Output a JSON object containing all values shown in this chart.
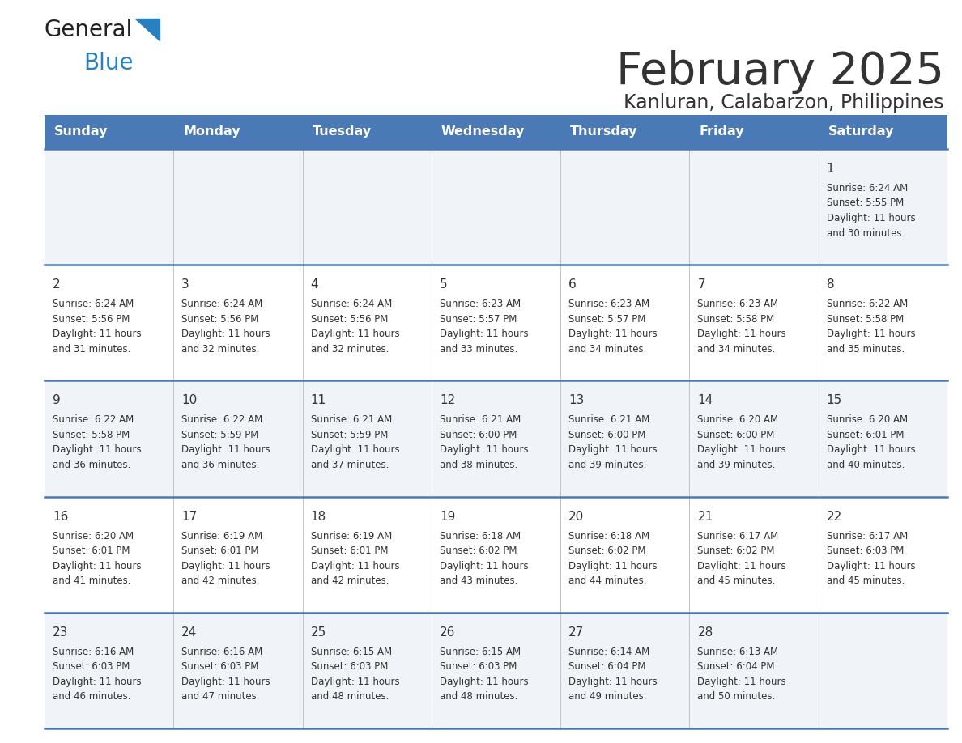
{
  "title": "February 2025",
  "subtitle": "Kanluran, Calabarzon, Philippines",
  "header_bg": "#4a7ab5",
  "header_text": "#ffffff",
  "header_days": [
    "Sunday",
    "Monday",
    "Tuesday",
    "Wednesday",
    "Thursday",
    "Friday",
    "Saturday"
  ],
  "row_bg_odd": "#f0f4f8",
  "row_bg_even": "#ffffff",
  "divider_color": "#4a7ab5",
  "text_color": "#333333",
  "logo_general_color": "#222222",
  "logo_blue_color": "#2980c0",
  "calendar": [
    [
      {
        "day": "",
        "sunrise": "",
        "sunset": "",
        "daylight": ""
      },
      {
        "day": "",
        "sunrise": "",
        "sunset": "",
        "daylight": ""
      },
      {
        "day": "",
        "sunrise": "",
        "sunset": "",
        "daylight": ""
      },
      {
        "day": "",
        "sunrise": "",
        "sunset": "",
        "daylight": ""
      },
      {
        "day": "",
        "sunrise": "",
        "sunset": "",
        "daylight": ""
      },
      {
        "day": "",
        "sunrise": "",
        "sunset": "",
        "daylight": ""
      },
      {
        "day": "1",
        "sunrise": "6:24 AM",
        "sunset": "5:55 PM",
        "daylight": "11 hours\nand 30 minutes."
      }
    ],
    [
      {
        "day": "2",
        "sunrise": "6:24 AM",
        "sunset": "5:56 PM",
        "daylight": "11 hours\nand 31 minutes."
      },
      {
        "day": "3",
        "sunrise": "6:24 AM",
        "sunset": "5:56 PM",
        "daylight": "11 hours\nand 32 minutes."
      },
      {
        "day": "4",
        "sunrise": "6:24 AM",
        "sunset": "5:56 PM",
        "daylight": "11 hours\nand 32 minutes."
      },
      {
        "day": "5",
        "sunrise": "6:23 AM",
        "sunset": "5:57 PM",
        "daylight": "11 hours\nand 33 minutes."
      },
      {
        "day": "6",
        "sunrise": "6:23 AM",
        "sunset": "5:57 PM",
        "daylight": "11 hours\nand 34 minutes."
      },
      {
        "day": "7",
        "sunrise": "6:23 AM",
        "sunset": "5:58 PM",
        "daylight": "11 hours\nand 34 minutes."
      },
      {
        "day": "8",
        "sunrise": "6:22 AM",
        "sunset": "5:58 PM",
        "daylight": "11 hours\nand 35 minutes."
      }
    ],
    [
      {
        "day": "9",
        "sunrise": "6:22 AM",
        "sunset": "5:58 PM",
        "daylight": "11 hours\nand 36 minutes."
      },
      {
        "day": "10",
        "sunrise": "6:22 AM",
        "sunset": "5:59 PM",
        "daylight": "11 hours\nand 36 minutes."
      },
      {
        "day": "11",
        "sunrise": "6:21 AM",
        "sunset": "5:59 PM",
        "daylight": "11 hours\nand 37 minutes."
      },
      {
        "day": "12",
        "sunrise": "6:21 AM",
        "sunset": "6:00 PM",
        "daylight": "11 hours\nand 38 minutes."
      },
      {
        "day": "13",
        "sunrise": "6:21 AM",
        "sunset": "6:00 PM",
        "daylight": "11 hours\nand 39 minutes."
      },
      {
        "day": "14",
        "sunrise": "6:20 AM",
        "sunset": "6:00 PM",
        "daylight": "11 hours\nand 39 minutes."
      },
      {
        "day": "15",
        "sunrise": "6:20 AM",
        "sunset": "6:01 PM",
        "daylight": "11 hours\nand 40 minutes."
      }
    ],
    [
      {
        "day": "16",
        "sunrise": "6:20 AM",
        "sunset": "6:01 PM",
        "daylight": "11 hours\nand 41 minutes."
      },
      {
        "day": "17",
        "sunrise": "6:19 AM",
        "sunset": "6:01 PM",
        "daylight": "11 hours\nand 42 minutes."
      },
      {
        "day": "18",
        "sunrise": "6:19 AM",
        "sunset": "6:01 PM",
        "daylight": "11 hours\nand 42 minutes."
      },
      {
        "day": "19",
        "sunrise": "6:18 AM",
        "sunset": "6:02 PM",
        "daylight": "11 hours\nand 43 minutes."
      },
      {
        "day": "20",
        "sunrise": "6:18 AM",
        "sunset": "6:02 PM",
        "daylight": "11 hours\nand 44 minutes."
      },
      {
        "day": "21",
        "sunrise": "6:17 AM",
        "sunset": "6:02 PM",
        "daylight": "11 hours\nand 45 minutes."
      },
      {
        "day": "22",
        "sunrise": "6:17 AM",
        "sunset": "6:03 PM",
        "daylight": "11 hours\nand 45 minutes."
      }
    ],
    [
      {
        "day": "23",
        "sunrise": "6:16 AM",
        "sunset": "6:03 PM",
        "daylight": "11 hours\nand 46 minutes."
      },
      {
        "day": "24",
        "sunrise": "6:16 AM",
        "sunset": "6:03 PM",
        "daylight": "11 hours\nand 47 minutes."
      },
      {
        "day": "25",
        "sunrise": "6:15 AM",
        "sunset": "6:03 PM",
        "daylight": "11 hours\nand 48 minutes."
      },
      {
        "day": "26",
        "sunrise": "6:15 AM",
        "sunset": "6:03 PM",
        "daylight": "11 hours\nand 48 minutes."
      },
      {
        "day": "27",
        "sunrise": "6:14 AM",
        "sunset": "6:04 PM",
        "daylight": "11 hours\nand 49 minutes."
      },
      {
        "day": "28",
        "sunrise": "6:13 AM",
        "sunset": "6:04 PM",
        "daylight": "11 hours\nand 50 minutes."
      },
      {
        "day": "",
        "sunrise": "",
        "sunset": "",
        "daylight": ""
      }
    ]
  ],
  "fig_width": 11.88,
  "fig_height": 9.18,
  "dpi": 100
}
